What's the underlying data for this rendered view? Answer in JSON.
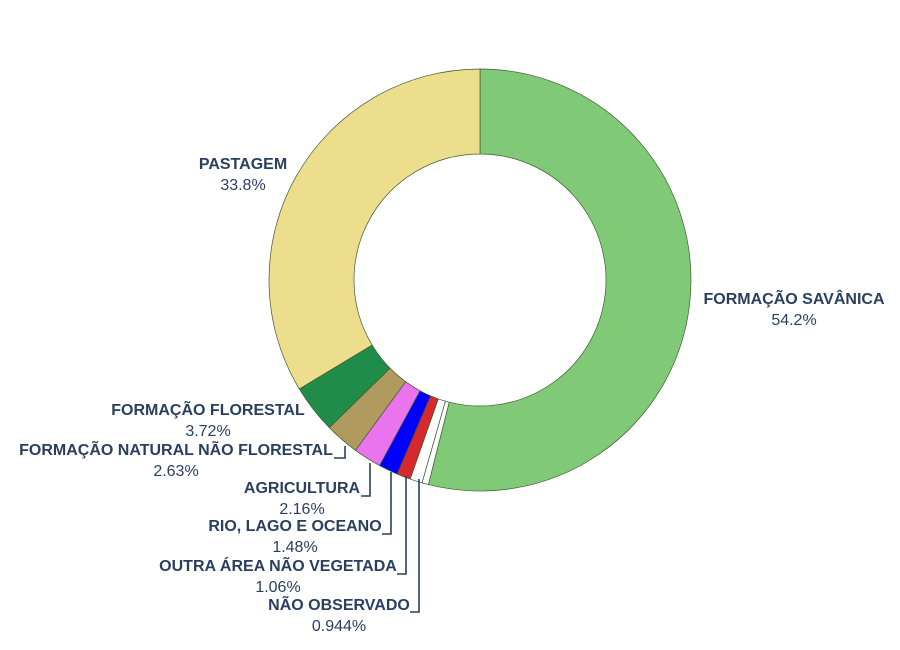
{
  "chart_data": {
    "type": "pie",
    "hole": true,
    "slices": [
      {
        "label": "FORMAÇÃO SAVÂNICA",
        "value": 54.2,
        "pct_text": "54.2%",
        "color": "#80ca77"
      },
      {
        "label": "",
        "value": 0.5,
        "pct_text": "",
        "color": "#ffffff"
      },
      {
        "label": "NÃO OBSERVADO",
        "value": 0.944,
        "pct_text": "0.944%",
        "color": "#ffffff"
      },
      {
        "label": "OUTRA ÁREA NÃO VEGETADA",
        "value": 1.06,
        "pct_text": "1.06%",
        "color": "#d7282b"
      },
      {
        "label": "RIO, LAGO E OCEANO",
        "value": 1.48,
        "pct_text": "1.48%",
        "color": "#0000ff"
      },
      {
        "label": "AGRICULTURA",
        "value": 2.16,
        "pct_text": "2.16%",
        "color": "#e974ed"
      },
      {
        "label": "FORMAÇÃO NATURAL NÃO FLORESTAL",
        "value": 2.63,
        "pct_text": "2.63%",
        "color": "#b09a5d"
      },
      {
        "label": "FORMAÇÃO FLORESTAL",
        "value": 3.72,
        "pct_text": "3.72%",
        "color": "#1f8d49"
      },
      {
        "label": "PASTAGEM",
        "value": 33.8,
        "pct_text": "33.8%",
        "color": "#edde8e"
      }
    ]
  }
}
